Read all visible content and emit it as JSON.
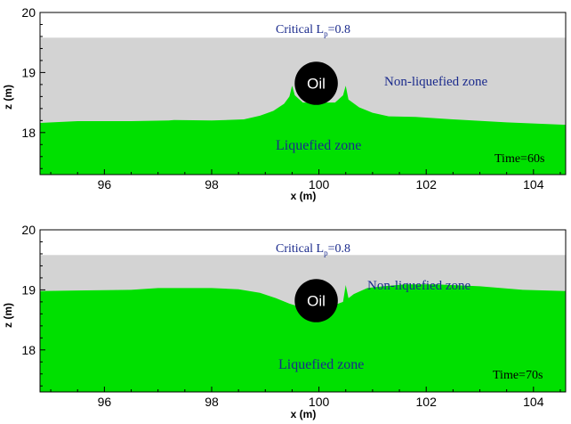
{
  "colors": {
    "liquefied": "#00e000",
    "non_liquefied": "#d3d3d3",
    "oil": "#000000",
    "annotation": "#1a2a8c"
  },
  "chart_data": [
    {
      "type": "area",
      "title": "Critical L",
      "title_sub": "p",
      "title_value": "=0.8",
      "xlabel": "x (m)",
      "ylabel": "z (m)",
      "xlim": [
        94.8,
        104.6
      ],
      "ylim": [
        17.3,
        20.0
      ],
      "x_ticks": [
        96,
        98,
        100,
        102,
        104
      ],
      "y_ticks": [
        18,
        19,
        20
      ],
      "domain_top_z": 19.58,
      "oil": {
        "label": "Oil",
        "x": 99.95,
        "z": 18.82,
        "radius": 0.36
      },
      "annotations": {
        "non_liquefied": "Non-liquefied zone",
        "liquefied": "Liquefied zone",
        "time": "Time=60s"
      },
      "interface": {
        "x": [
          94.8,
          95.5,
          96.5,
          97.2,
          97.3,
          98.0,
          98.6,
          98.9,
          99.15,
          99.35,
          99.45,
          99.5,
          99.55,
          99.7,
          100.3,
          100.45,
          100.5,
          100.55,
          100.75,
          101.0,
          101.3,
          101.8,
          102.5,
          103.5,
          104.6
        ],
        "z": [
          18.16,
          18.19,
          18.19,
          18.2,
          18.21,
          18.2,
          18.22,
          18.28,
          18.36,
          18.48,
          18.6,
          18.78,
          18.62,
          18.5,
          18.5,
          18.62,
          18.78,
          18.55,
          18.42,
          18.33,
          18.27,
          18.26,
          18.22,
          18.17,
          18.13
        ]
      }
    },
    {
      "type": "area",
      "title": "Critical L",
      "title_sub": "p",
      "title_value": "=0.8",
      "xlabel": "x (m)",
      "ylabel": "z (m)",
      "xlim": [
        94.8,
        104.6
      ],
      "ylim": [
        17.3,
        20.0
      ],
      "x_ticks": [
        96,
        98,
        100,
        102,
        104
      ],
      "y_ticks": [
        18,
        19,
        20
      ],
      "domain_top_z": 19.58,
      "oil": {
        "label": "Oil",
        "x": 99.95,
        "z": 18.82,
        "radius": 0.36
      },
      "annotations": {
        "non_liquefied": "Non-liquefied zone",
        "liquefied": "Liquefied zone",
        "time": "Time=70s"
      },
      "interface": {
        "x": [
          94.8,
          95.5,
          96.5,
          97.0,
          98.0,
          98.5,
          98.9,
          99.2,
          99.45,
          99.7,
          99.95,
          100.2,
          100.45,
          100.5,
          100.55,
          100.65,
          100.9,
          101.2,
          101.6,
          102.2,
          103.0,
          103.8,
          104.6
        ],
        "z": [
          18.98,
          18.99,
          19.0,
          19.03,
          19.03,
          19.01,
          18.95,
          18.86,
          18.77,
          18.7,
          18.68,
          18.72,
          18.8,
          19.08,
          18.86,
          18.93,
          19.03,
          19.06,
          19.09,
          19.09,
          19.06,
          19.0,
          18.98
        ]
      }
    }
  ]
}
